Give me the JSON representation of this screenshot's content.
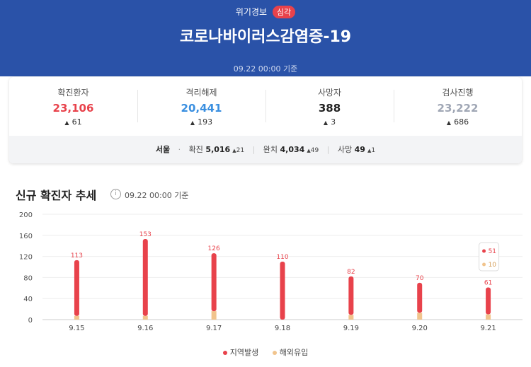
{
  "header": {
    "alert_label": "위기경보",
    "alert_level": "심각",
    "title": "코로나바이러스감염증-19",
    "basis_time": "09.22 00:00 기준"
  },
  "stats": [
    {
      "label": "확진환자",
      "value": "23,106",
      "delta": "61",
      "color": "#e8424b"
    },
    {
      "label": "격리해제",
      "value": "20,441",
      "delta": "193",
      "color": "#3a8fe0"
    },
    {
      "label": "사망자",
      "value": "388",
      "delta": "3",
      "color": "#222222"
    },
    {
      "label": "검사진행",
      "value": "23,222",
      "delta": "686",
      "color": "#a0a7b5"
    }
  ],
  "seoul": {
    "region": "서울",
    "confirmed_label": "확진",
    "confirmed_value": "5,016",
    "confirmed_delta": "21",
    "released_label": "완치",
    "released_value": "4,034",
    "released_delta": "49",
    "deaths_label": "사망",
    "deaths_value": "49",
    "deaths_delta": "1"
  },
  "trend": {
    "title": "신규 확진자 추세",
    "info_icon": "info-icon",
    "basis_time": "09.22 00:00 기준"
  },
  "chart_data": {
    "type": "bar",
    "stacked": true,
    "categories": [
      "9.15",
      "9.16",
      "9.17",
      "9.18",
      "9.19",
      "9.20",
      "9.21"
    ],
    "series": [
      {
        "name": "지역발생",
        "values": [
          106,
          146,
          110,
          110,
          73,
          57,
          51
        ],
        "color": "#e8424b"
      },
      {
        "name": "해외유입",
        "values": [
          7,
          7,
          16,
          0,
          9,
          13,
          10
        ],
        "color": "#f1c48d"
      }
    ],
    "totals": [
      113,
      153,
      126,
      110,
      82,
      70,
      61
    ],
    "ylim": [
      0,
      200
    ],
    "yticks": [
      0,
      40,
      80,
      120,
      160,
      200
    ],
    "grid": true,
    "legend_position": "bottom",
    "tooltip": {
      "category": "9.21",
      "values": [
        "51",
        "10"
      ]
    }
  },
  "colors": {
    "header_bg": "#2a52a8",
    "accent_red": "#e8424b",
    "accent_blue": "#3a8fe0",
    "beige": "#f1c48d"
  }
}
